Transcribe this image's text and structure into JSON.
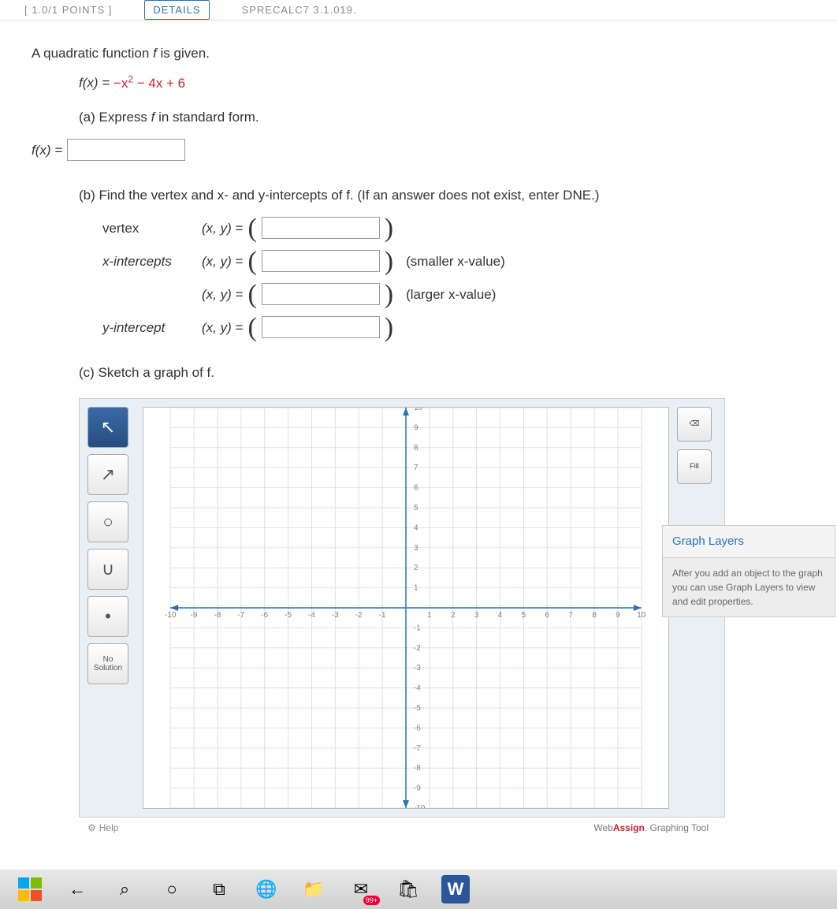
{
  "tabs": {
    "points": "[ 1.0/1 POINTS ]",
    "details": "DETAILS",
    "precalc": "SPRECALC7 3.1.019."
  },
  "problem": {
    "intro": "A quadratic function ",
    "intro2": " is given.",
    "fvar": "f",
    "equation_lhs": "f(x) = ",
    "equation_rhs_accent": "−x",
    "equation_rhs_rest": " − 4x + 6",
    "part_a": "(a) Express ",
    "part_a2": " in standard form.",
    "fx_label": "f(x) =",
    "part_b": "(b) Find the vertex and x- and y-intercepts of f. (If an answer does not exist, enter DNE.)",
    "vertex_label": "vertex",
    "xint_label": "x-intercepts",
    "yint_label": "y-intercept",
    "xy_eq": "(x, y) = ",
    "smaller_hint": "(smaller x-value)",
    "larger_hint": "(larger x-value)",
    "part_c": "(c) Sketch a graph of f."
  },
  "graph": {
    "xlim": [
      -10,
      10
    ],
    "ylim": [
      -10,
      10
    ],
    "xtick_step": 1,
    "ytick_step": 1,
    "axis_color": "#2a6fbb",
    "grid_color": "#d8e2ec",
    "background": "#ffffff",
    "label_color": "#808080",
    "label_fontsize": 10,
    "tools": [
      {
        "name": "pointer",
        "symbol": "↖",
        "active": true
      },
      {
        "name": "ray",
        "symbol": "↗",
        "active": false
      },
      {
        "name": "circle",
        "symbol": "○",
        "active": false
      },
      {
        "name": "parabola",
        "symbol": "∪",
        "active": false
      },
      {
        "name": "point",
        "symbol": "•",
        "active": false
      },
      {
        "name": "no-solution",
        "text": "No Solution",
        "active": false
      }
    ],
    "right_tools": [
      {
        "name": "delete",
        "label": "⌫"
      },
      {
        "name": "fill",
        "label": "Fill"
      }
    ],
    "help_label": "Help",
    "attrib_prefix": "Web",
    "attrib_bold": "Assign",
    "attrib_suffix": ". Graphing Tool"
  },
  "layers": {
    "title": "Graph Layers",
    "body": "After you add an object to the graph you can use Graph Layers to view and edit properties."
  },
  "taskbar": {
    "icons": [
      {
        "name": "start",
        "type": "windows"
      },
      {
        "name": "back",
        "glyph": "←"
      },
      {
        "name": "search",
        "glyph": "⌕"
      },
      {
        "name": "cortana",
        "glyph": "○"
      },
      {
        "name": "taskview",
        "glyph": "⧉"
      },
      {
        "name": "edge",
        "glyph": "🌐"
      },
      {
        "name": "explorer",
        "glyph": "📁"
      },
      {
        "name": "mail",
        "glyph": "✉",
        "badge": "99+"
      },
      {
        "name": "store",
        "glyph": "🛍"
      },
      {
        "name": "word",
        "glyph": "W"
      }
    ]
  }
}
